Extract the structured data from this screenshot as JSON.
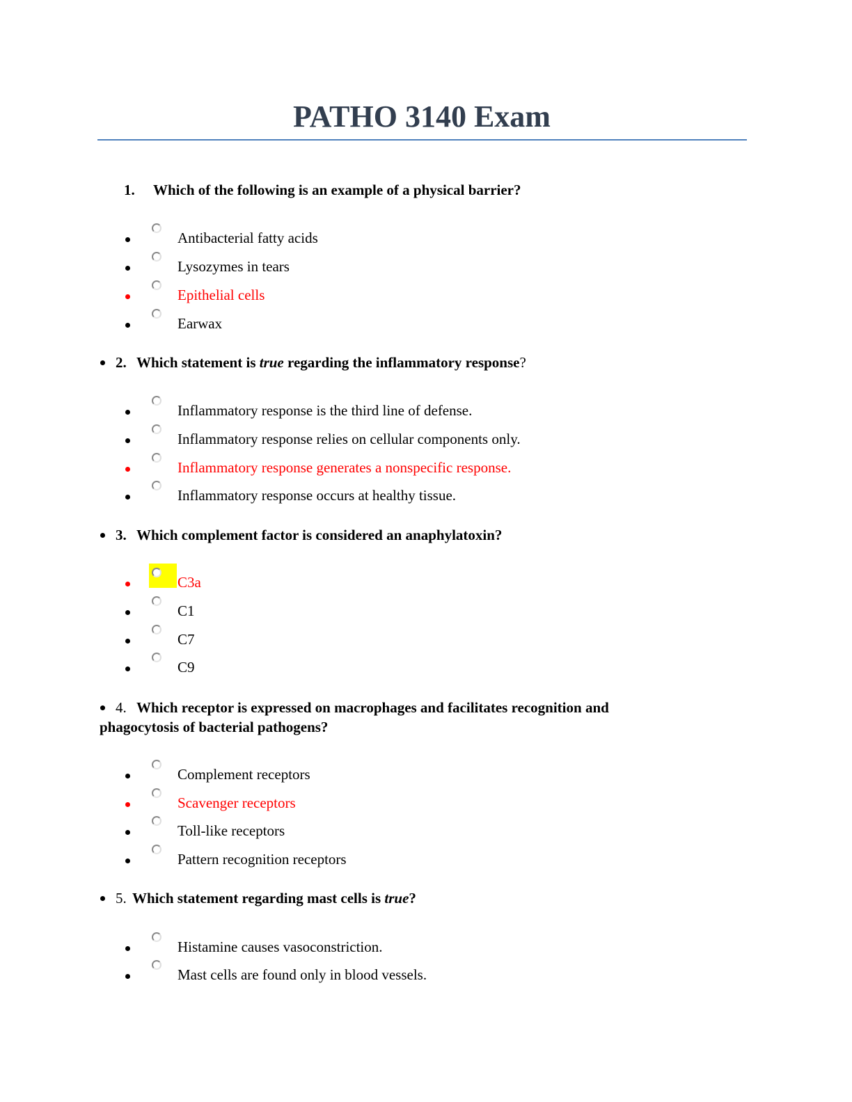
{
  "title": "PATHO 3140 Exam",
  "colors": {
    "title": "#323e4f",
    "rule": "#4f81bd",
    "correct": "#ff0000",
    "highlight": "#ffff00"
  },
  "questions": [
    {
      "number": "1.",
      "text": "Which of the following is an example of a physical barrier?",
      "options": [
        "Antibacterial fatty acids",
        "Lysozymes in tears",
        "Epithelial cells",
        "Earwax"
      ],
      "correct_index": 2
    },
    {
      "number": "2.",
      "text_before": "Which statement is ",
      "text_emph": "true",
      "text_after": " regarding the inflammatory  response",
      "end": "?",
      "options": [
        "Inflammatory response is the third line of defense.",
        "Inflammatory response relies on cellular components only.",
        "Inflammatory response generates a nonspecific response.",
        "Inflammatory response occurs at healthy tissue."
      ],
      "correct_index": 2
    },
    {
      "number": "3.",
      "text": "Which complement factor is considered an anaphylatoxin?",
      "options": [
        "C3a",
        "C1",
        "C7",
        "C9"
      ],
      "correct_index": 0
    },
    {
      "number": "4.",
      "text_line1": "Which receptor is expressed on macrophages and facilitates recognition and",
      "text_line2": "phagocytosis of bacterial pathogens?",
      "options": [
        "Complement receptors",
        "Scavenger receptors",
        "Toll-like receptors",
        "Pattern recognition receptors"
      ],
      "correct_index": 1
    },
    {
      "number": "5.",
      "text_before": "Which statement regarding mast cells is ",
      "text_emph": "true",
      "end": "?",
      "options": [
        "Histamine causes vasoconstriction.",
        "Mast cells are found only in blood vessels."
      ]
    }
  ]
}
